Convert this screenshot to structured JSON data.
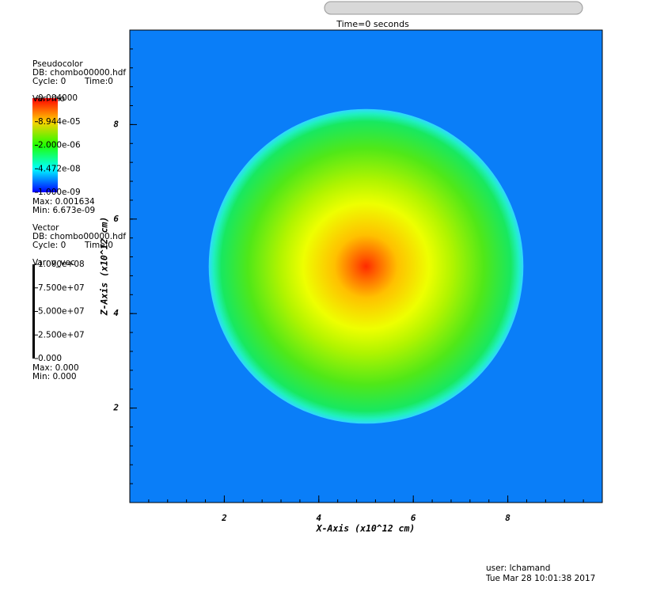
{
  "chart_data": {
    "type": "pseudocolor",
    "title": "Time=0 seconds",
    "x_label": "X-Axis (x10^12 cm)",
    "y_label": "Z-Axis (x10^12 cm)",
    "xlim": [
      0,
      10
    ],
    "ylim": [
      0,
      10
    ],
    "xticks": [
      2,
      4,
      6,
      8
    ],
    "yticks": [
      2,
      4,
      6,
      8
    ],
    "background_color": "#0a7ef8",
    "field": {
      "center": [
        5,
        5
      ],
      "radius": 3.33
    },
    "pseudocolor_legend": {
      "lines": [
        "Pseudocolor",
        "DB: chombo00000.hdf",
        "Cycle: 0",
        "Time:0",
        "Var: rho"
      ],
      "labels": [
        "0.004000",
        "8.944e-05",
        "2.000e-06",
        "4.472e-08",
        "1.000e-09"
      ],
      "max": "Max: 0.001634",
      "min": "Min: 6.673e-09"
    },
    "vector_legend": {
      "lines": [
        "Vector",
        "DB: chombo00000.hdf",
        "Cycle: 0",
        "Time:0",
        "Var: v_vec"
      ],
      "labels": [
        "1.000e+08",
        "7.500e+07",
        "5.000e+07",
        "2.500e+07",
        "0.000"
      ],
      "max": "Max: 0.000",
      "min": "Min: 0.000"
    },
    "user": "user: lchamand",
    "date": "Tue Mar 28 10:01:38 2017"
  }
}
